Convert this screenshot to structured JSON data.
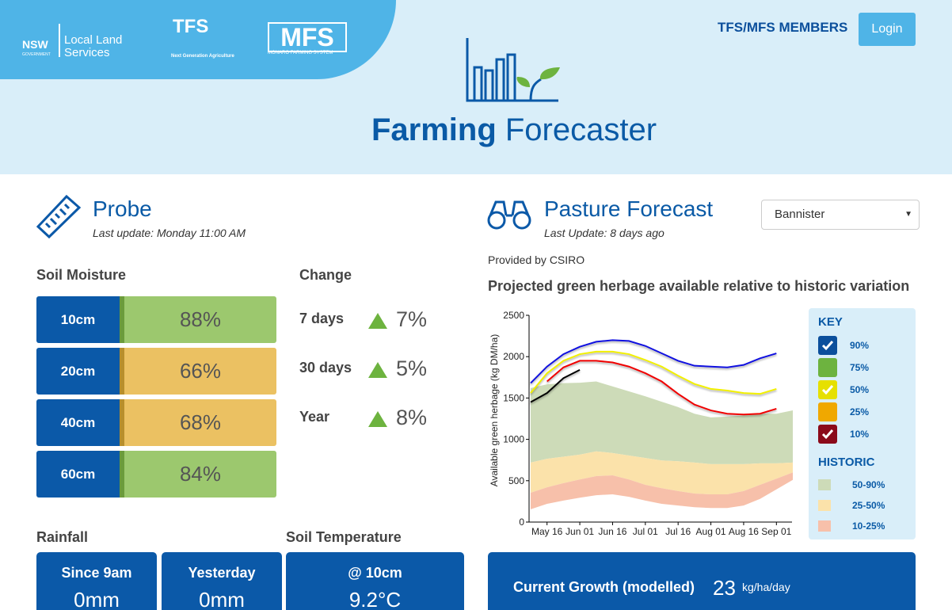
{
  "header": {
    "nsw": "NSW",
    "nsw_sub": "GOVERNMENT",
    "lls": "Local Land Services",
    "tfs": "TFS",
    "tfs_sub": "Next Generation Agriculture",
    "mfs": "MFS",
    "mfs_sub": "MONARO FARMING SYSTEM",
    "members_link": "TFS/MFS MEMBERS",
    "login": "Login",
    "title_bold": "Farming",
    "title_rest": "Forecaster"
  },
  "probe": {
    "title": "Probe",
    "last_update": "Last update: Monday 11:00 AM",
    "soil_moisture_title": "Soil Moisture",
    "change_title": "Change",
    "soil_moisture": [
      {
        "depth": "10cm",
        "value": "88%",
        "color": "#9cc86e",
        "strip": "#6b9b3c"
      },
      {
        "depth": "20cm",
        "value": "66%",
        "color": "#ebc162",
        "strip": "#b88f2c"
      },
      {
        "depth": "40cm",
        "value": "68%",
        "color": "#ebc162",
        "strip": "#b88f2c"
      },
      {
        "depth": "60cm",
        "value": "84%",
        "color": "#9cc86e",
        "strip": "#6b9b3c"
      }
    ],
    "change": [
      {
        "period": "7 days",
        "value": "7%"
      },
      {
        "period": "30 days",
        "value": "5%"
      },
      {
        "period": "Year",
        "value": "8%"
      }
    ],
    "rainfall_title": "Rainfall",
    "soil_temp_title": "Soil Temperature",
    "rainfall": [
      {
        "label": "Since 9am",
        "value": "0mm"
      },
      {
        "label": "Yesterday",
        "value": "0mm"
      }
    ],
    "soil_temp": {
      "label": "@ 10cm",
      "value": "9.2°C"
    }
  },
  "pasture": {
    "title": "Pasture Forecast",
    "last_update": "Last Update: 8 days ago",
    "select": "Bannister",
    "provider": "Provided by CSIRO",
    "growth_label": "Current Growth (modelled)",
    "growth_value": "23",
    "growth_unit": "kg/ha/day"
  },
  "chart_data": {
    "type": "line",
    "title": "Projected green herbage available relative to historic variation",
    "y_label": "Available green herbage (kg DM/ha)",
    "categories": [
      null,
      "May 16",
      null,
      "Jun 01",
      null,
      "Jun 16",
      null,
      "Jul 01",
      null,
      "Jul 16",
      null,
      "Aug 01",
      null,
      "Aug 16",
      null,
      "Sep 01",
      null
    ],
    "ylim": [
      0,
      2500
    ],
    "yticks": [
      0,
      500,
      1000,
      1500,
      2000,
      2500
    ],
    "grid": false,
    "key_title": "KEY",
    "historic_title": "HISTORIC",
    "key": [
      {
        "label": "90%",
        "color": "#0b4f9c",
        "checked": true
      },
      {
        "label": "75%",
        "color": "#6db33f",
        "checked": false
      },
      {
        "label": "50%",
        "color": "#e6e000",
        "checked": true
      },
      {
        "label": "25%",
        "color": "#f0a800",
        "checked": false
      },
      {
        "label": "10%",
        "color": "#8b0a1a",
        "checked": true
      }
    ],
    "bands": [
      {
        "name": "50-90%",
        "color": "#cddbb8",
        "values": [
          1620,
          1665,
          1680,
          1685,
          1700,
          1640,
          1580,
          1520,
          1455,
          1390,
          1310,
          1265,
          1275,
          1290,
          1310,
          1310,
          1350
        ],
        "low": [
          720,
          765,
          790,
          815,
          855,
          835,
          805,
          775,
          745,
          735,
          720,
          700,
          700,
          700,
          710,
          710,
          720
        ]
      },
      {
        "name": "25-50%",
        "color": "#fbe2aa",
        "values": [
          720,
          765,
          790,
          815,
          855,
          835,
          805,
          775,
          745,
          735,
          720,
          700,
          700,
          700,
          710,
          710,
          720
        ],
        "low": [
          355,
          420,
          470,
          515,
          555,
          565,
          515,
          450,
          410,
          375,
          345,
          335,
          335,
          375,
          450,
          525,
          600
        ]
      },
      {
        "name": "10-25%",
        "color": "#f7c0aa",
        "values": [
          355,
          420,
          470,
          515,
          555,
          565,
          515,
          450,
          410,
          375,
          345,
          335,
          335,
          375,
          450,
          525,
          600
        ],
        "low": [
          155,
          220,
          260,
          295,
          325,
          335,
          305,
          260,
          220,
          200,
          180,
          170,
          170,
          200,
          280,
          395,
          510
        ]
      }
    ],
    "series": [
      {
        "color": "#1010e0",
        "values": [
          1680,
          1880,
          2030,
          2120,
          2180,
          2200,
          2190,
          2130,
          2040,
          1950,
          1890,
          1880,
          1870,
          1900,
          1980,
          2040,
          null
        ]
      },
      {
        "color": "#f2f000",
        "values": [
          1560,
          1800,
          1950,
          2030,
          2060,
          2060,
          2030,
          1960,
          1880,
          1770,
          1670,
          1610,
          1590,
          1560,
          1550,
          1610,
          null
        ]
      },
      {
        "color": "#f00000",
        "values": [
          null,
          1700,
          1870,
          1950,
          1950,
          1930,
          1880,
          1800,
          1700,
          1550,
          1420,
          1350,
          1310,
          1300,
          1310,
          1370,
          null
        ]
      },
      {
        "color": "#000000",
        "values": [
          1450,
          1560,
          1740,
          1840,
          null,
          null,
          null,
          null,
          null,
          null,
          null,
          null,
          null,
          null,
          null,
          null,
          null
        ]
      }
    ]
  }
}
